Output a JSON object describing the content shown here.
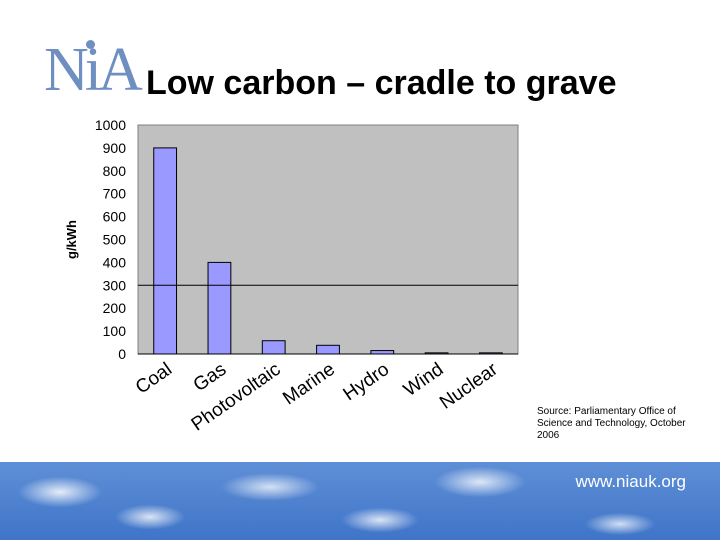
{
  "header": {
    "logo_text": "NiA",
    "title": "Low carbon – cradle to grave"
  },
  "colors": {
    "bar_fill": "#9999ff",
    "plot_background": "#c0c0c0",
    "logo": "#6f8fc0",
    "footer": "#3f74c8"
  },
  "chart_data": {
    "type": "bar",
    "categories": [
      "Coal",
      "Gas",
      "Photovoltaic",
      "Marine",
      "Hydro",
      "Wind",
      "Nuclear"
    ],
    "values": [
      900,
      400,
      58,
      38,
      15,
      5,
      5
    ],
    "title": "",
    "xlabel": "",
    "ylabel": "g/kWh",
    "ylim": [
      0,
      1000
    ],
    "yticks": [
      0,
      100,
      200,
      300,
      400,
      500,
      600,
      700,
      800,
      900,
      1000
    ],
    "grid": false,
    "legend": "none",
    "reference_line": 300
  },
  "source_note": "Source: Parliamentary Office of Science and Technology, October 2006",
  "footer": {
    "url": "www.niauk.org"
  }
}
